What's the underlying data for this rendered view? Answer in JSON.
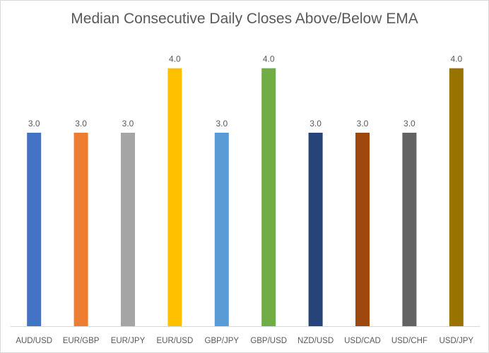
{
  "chart_data": {
    "type": "bar",
    "title": "Median Consecutive Daily Closes Above/Below EMA",
    "xlabel": "",
    "ylabel": "",
    "ylim": [
      0,
      4.5
    ],
    "grid": false,
    "legend": "none",
    "categories": [
      "AUD/USD",
      "EUR/GBP",
      "EUR/JPY",
      "EUR/USD",
      "GBP/JPY",
      "GBP/USD",
      "NZD/USD",
      "USD/CAD",
      "USD/CHF",
      "USD/JPY"
    ],
    "values": [
      3.0,
      3.0,
      3.0,
      4.0,
      3.0,
      4.0,
      3.0,
      3.0,
      3.0,
      4.0
    ],
    "data_labels": [
      "3.0",
      "3.0",
      "3.0",
      "4.0",
      "3.0",
      "4.0",
      "3.0",
      "3.0",
      "3.0",
      "4.0"
    ],
    "colors": [
      "#4472C4",
      "#ED7D31",
      "#A5A5A5",
      "#FFC000",
      "#5B9BD5",
      "#70AD47",
      "#264478",
      "#9E480E",
      "#636363",
      "#997300"
    ]
  }
}
